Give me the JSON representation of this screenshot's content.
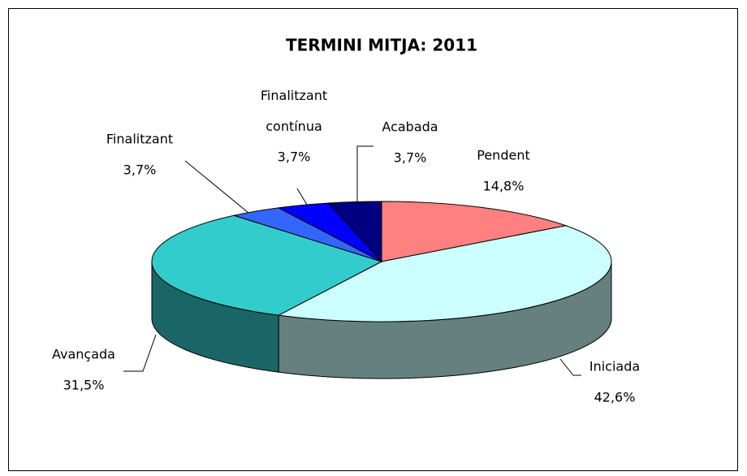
{
  "chart_data": {
    "type": "pie",
    "title": "TERMINI MITJA: 2011",
    "categories": [
      "Pendent",
      "Iniciada",
      "Avançada",
      "Finalitzant",
      "Finalitzant contínua",
      "Acabada"
    ],
    "values": [
      14.8,
      42.6,
      31.5,
      3.7,
      3.7,
      3.7
    ],
    "value_labels": [
      "14,8%",
      "42,6%",
      "31,5%",
      "3,7%",
      "3,7%",
      "3,7%"
    ],
    "colors": [
      "#ff8080",
      "#ccffff",
      "#33cccc",
      "#3366ff",
      "#0000ff",
      "#000080"
    ]
  }
}
